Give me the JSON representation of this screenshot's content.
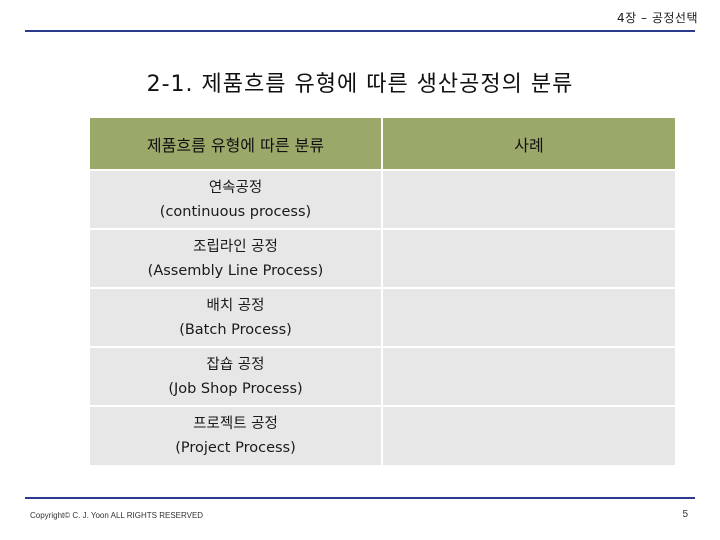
{
  "header": {
    "chapter": "4장 – 공정선택"
  },
  "title": "2-1. 제품흐름 유형에 따른 생산공정의 분류",
  "table": {
    "headers": [
      "제품흐름 유형에 따른 분류",
      "사례"
    ],
    "rows": [
      {
        "ko": "연속공정",
        "en": "(continuous process)",
        "example": ""
      },
      {
        "ko": "조립라인 공정",
        "en": "(Assembly Line Process)",
        "example": ""
      },
      {
        "ko": "배치 공정",
        "en": "(Batch Process)",
        "example": ""
      },
      {
        "ko": "잡숍 공정",
        "en": "(Job Shop Process)",
        "example": ""
      },
      {
        "ko": "프로젝트 공정",
        "en": "(Project Process)",
        "example": ""
      }
    ]
  },
  "footer": {
    "copyright": "Copyright© C. J. Yoon ALL RIGHTS RESERVED",
    "page": "5"
  },
  "colors": {
    "rule": "#2b3a8c",
    "header_bg": "#9aa86a",
    "cell_bg": "#e7e7e7"
  }
}
